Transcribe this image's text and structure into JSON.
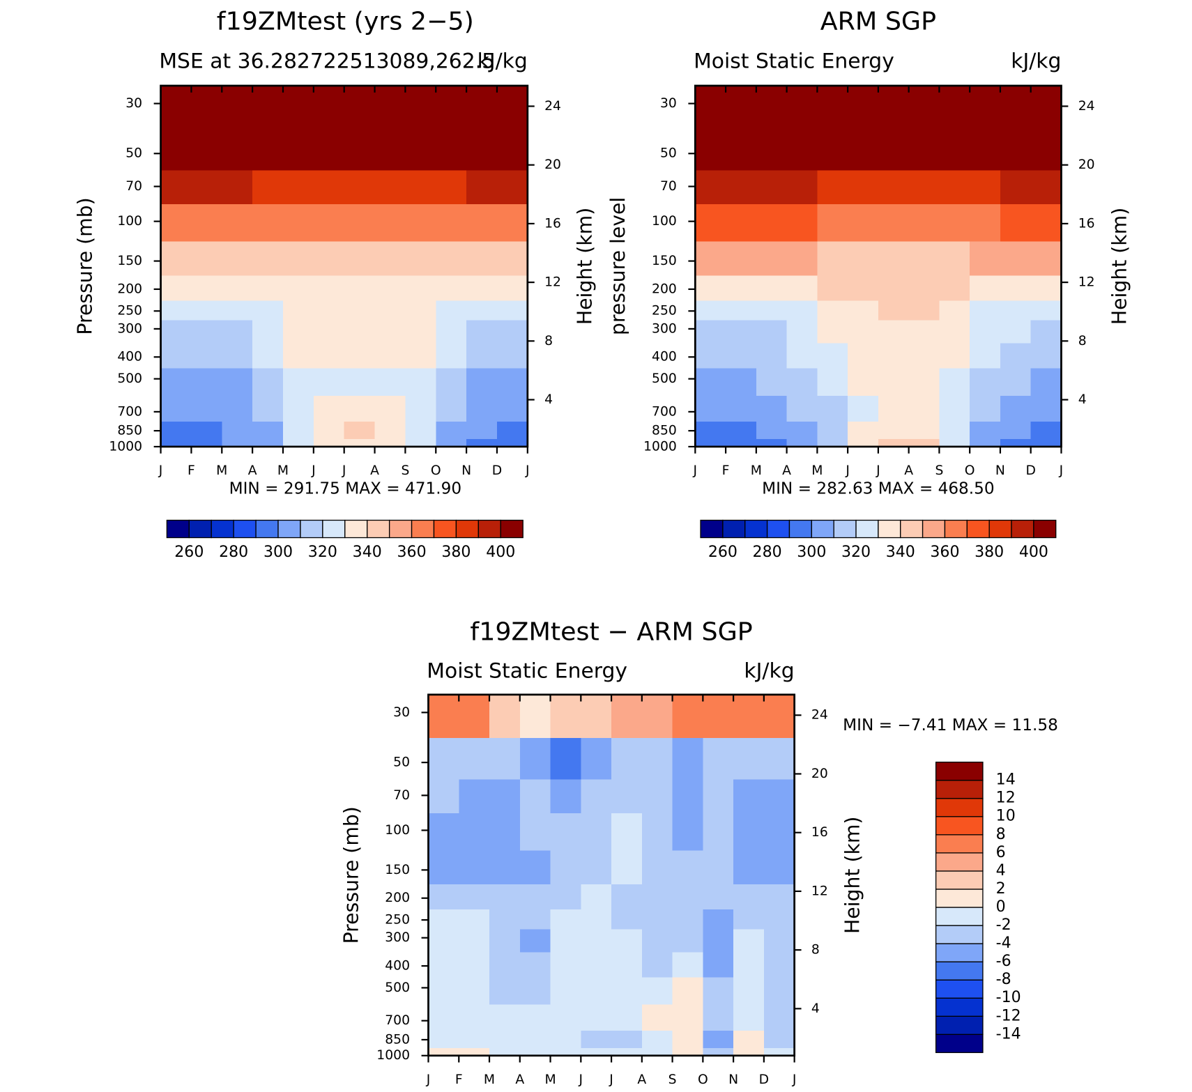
{
  "chart_data": [
    {
      "type": "contour",
      "title": "f19ZMtest (yrs 2−5)",
      "subtitle_left": "MSE at 36.282722513089,262.5",
      "subtitle_right": "kJ/kg",
      "y_label": "Pressure (mb)",
      "y2_label": "Height (km)",
      "stats": "MIN = 291.75  MAX = 471.90",
      "categories": [
        "J",
        "F",
        "M",
        "A",
        "M",
        "J",
        "J",
        "A",
        "S",
        "O",
        "N",
        "D",
        "J"
      ],
      "y": [
        1000,
        850,
        700,
        500,
        400,
        300,
        250,
        200,
        150,
        100,
        70,
        50,
        30
      ],
      "z": [
        [
          294,
          296,
          300,
          306,
          322,
          334,
          338,
          336,
          326,
          304,
          298,
          294
        ],
        [
          296,
          298,
          302,
          308,
          325,
          336,
          340,
          338,
          328,
          305,
          300,
          296
        ],
        [
          304,
          304,
          306,
          312,
          325,
          333,
          336,
          334,
          327,
          312,
          306,
          304
        ],
        [
          306,
          307,
          309,
          316,
          324,
          329,
          328,
          328,
          326,
          316,
          309,
          306
        ],
        [
          312,
          312,
          314,
          320,
          332,
          335,
          336,
          335,
          330,
          320,
          314,
          312
        ],
        [
          316,
          316,
          317,
          322,
          333,
          336,
          337,
          336,
          333,
          322,
          317,
          316
        ],
        [
          324,
          324,
          324,
          326,
          333,
          336,
          336,
          336,
          334,
          326,
          324,
          324
        ],
        [
          333,
          333,
          333,
          334,
          336,
          338,
          338,
          338,
          337,
          335,
          334,
          333
        ],
        [
          345,
          345,
          346,
          347,
          348,
          348,
          348,
          348,
          347,
          346,
          345,
          345
        ],
        [
          368,
          368,
          367,
          366,
          365,
          364,
          363,
          363,
          364,
          365,
          367,
          368
        ],
        [
          392,
          392,
          390,
          388,
          386,
          385,
          384,
          384,
          385,
          387,
          390,
          392
        ],
        [
          410,
          410,
          410,
          410,
          410,
          410,
          410,
          410,
          410,
          410,
          410,
          410
        ],
        [
          450,
          450,
          450,
          450,
          450,
          450,
          450,
          450,
          450,
          450,
          450,
          450
        ]
      ],
      "log_y": true,
      "ylim": [
        1000,
        25
      ],
      "yticks": [
        30,
        50,
        70,
        100,
        150,
        200,
        250,
        300,
        400,
        500,
        700,
        850,
        1000
      ],
      "y2lim": [
        0.8,
        25.4
      ],
      "y2ticks": [
        4,
        8,
        12,
        16,
        20,
        24
      ],
      "colorbar": {
        "orientation": "horizontal",
        "levels": [
          260,
          270,
          280,
          290,
          300,
          310,
          320,
          330,
          340,
          350,
          360,
          370,
          380,
          390,
          400
        ],
        "ticks": [
          260,
          280,
          300,
          320,
          340,
          360,
          380,
          400
        ],
        "colors": [
          "#00008a",
          "#0020b0",
          "#0532d0",
          "#1e50f0",
          "#4478f0",
          "#7fa6f8",
          "#b3ccf8",
          "#d7e8fa",
          "#fde8d8",
          "#fcccb4",
          "#fba88a",
          "#fa7e50",
          "#f85520",
          "#e03808",
          "#b82008",
          "#8a0000"
        ]
      }
    },
    {
      "type": "contour",
      "title": "ARM SGP",
      "subtitle_left": "Moist Static Energy",
      "subtitle_right": "kJ/kg",
      "y_label": "pressure level",
      "y2_label": "Height (km)",
      "stats": "MIN = 282.63  MAX = 468.50",
      "categories": [
        "J",
        "F",
        "M",
        "A",
        "M",
        "J",
        "J",
        "A",
        "S",
        "O",
        "N",
        "D",
        "J"
      ],
      "y": [
        1000,
        850,
        700,
        500,
        400,
        300,
        250,
        200,
        150,
        100,
        70,
        50,
        30
      ],
      "z": [
        [
          294,
          296,
          298,
          304,
          314,
          334,
          342,
          340,
          328,
          304,
          298,
          294
        ],
        [
          296,
          297,
          300,
          306,
          316,
          332,
          338,
          338,
          328,
          306,
          300,
          296
        ],
        [
          302,
          302,
          304,
          310,
          318,
          328,
          334,
          334,
          326,
          310,
          304,
          302
        ],
        [
          308,
          308,
          310,
          314,
          322,
          330,
          332,
          332,
          326,
          314,
          310,
          308
        ],
        [
          314,
          314,
          316,
          320,
          328,
          334,
          336,
          336,
          330,
          320,
          316,
          314
        ],
        [
          318,
          318,
          319,
          324,
          333,
          337,
          339,
          338,
          334,
          324,
          320,
          318
        ],
        [
          325,
          325,
          326,
          328,
          335,
          338,
          340,
          340,
          336,
          328,
          326,
          325
        ],
        [
          335,
          335,
          336,
          337,
          340,
          342,
          342,
          342,
          340,
          338,
          336,
          335
        ],
        [
          352,
          352,
          351,
          350,
          349,
          348,
          347,
          347,
          348,
          350,
          351,
          352
        ],
        [
          372,
          372,
          371,
          370,
          368,
          366,
          365,
          365,
          366,
          368,
          371,
          372
        ],
        [
          394,
          393,
          392,
          390,
          388,
          387,
          386,
          386,
          387,
          389,
          392,
          394
        ],
        [
          410,
          410,
          410,
          410,
          410,
          410,
          410,
          410,
          410,
          410,
          410,
          410
        ],
        [
          450,
          450,
          450,
          450,
          450,
          450,
          450,
          450,
          450,
          450,
          450,
          450
        ]
      ],
      "log_y": true,
      "ylim": [
        1000,
        25
      ],
      "yticks": [
        30,
        50,
        70,
        100,
        150,
        200,
        250,
        300,
        400,
        500,
        700,
        850,
        1000
      ],
      "y2lim": [
        0.8,
        25.4
      ],
      "y2ticks": [
        4,
        8,
        12,
        16,
        20,
        24
      ],
      "colorbar": {
        "orientation": "horizontal",
        "levels": [
          260,
          270,
          280,
          290,
          300,
          310,
          320,
          330,
          340,
          350,
          360,
          370,
          380,
          390,
          400
        ],
        "ticks": [
          260,
          280,
          300,
          320,
          340,
          360,
          380,
          400
        ],
        "colors": [
          "#00008a",
          "#0020b0",
          "#0532d0",
          "#1e50f0",
          "#4478f0",
          "#7fa6f8",
          "#b3ccf8",
          "#d7e8fa",
          "#fde8d8",
          "#fcccb4",
          "#fba88a",
          "#fa7e50",
          "#f85520",
          "#e03808",
          "#b82008",
          "#8a0000"
        ]
      }
    },
    {
      "type": "contour",
      "title": "f19ZMtest − ARM SGP",
      "subtitle_left": "Moist Static Energy",
      "subtitle_right": "kJ/kg",
      "y_label": "Pressure (mb)",
      "y2_label": "Height (km)",
      "stats": "MIN =   −7.41  MAX =   11.58",
      "categories": [
        "J",
        "F",
        "M",
        "A",
        "M",
        "J",
        "J",
        "A",
        "S",
        "O",
        "N",
        "D",
        "J"
      ],
      "y": [
        1000,
        850,
        700,
        500,
        400,
        300,
        250,
        200,
        150,
        100,
        70,
        50,
        30
      ],
      "z": [
        [
          0,
          0,
          -1,
          -1,
          -1,
          -1,
          -2,
          -1,
          0,
          -3,
          0,
          -1
        ],
        [
          -1,
          -1,
          -1,
          -2,
          -1,
          -3,
          -3,
          -2,
          1,
          -6,
          0,
          -3
        ],
        [
          -1,
          -1,
          -2,
          -2,
          -1,
          -1,
          -1,
          0,
          1,
          -4,
          -1,
          -3
        ],
        [
          -1,
          -1,
          -3,
          -3,
          -2,
          -1,
          -1,
          -1,
          0,
          -4,
          -2,
          -3
        ],
        [
          -1,
          -2,
          -3,
          -4,
          -1,
          -1,
          -2,
          -3,
          -2,
          -5,
          -2,
          -3
        ],
        [
          -1,
          -2,
          -3,
          -5,
          -1,
          -1,
          -2,
          -3,
          -3,
          -5,
          -2,
          -3
        ],
        [
          -1,
          -1,
          -3,
          -4,
          -2,
          -1,
          -3,
          -3,
          -3,
          -5,
          -3,
          -3
        ],
        [
          -3,
          -3,
          -3,
          -4,
          -3,
          -2,
          -3,
          -3,
          -4,
          -3,
          -4,
          -4
        ],
        [
          -5,
          -5,
          -5,
          -5,
          -4,
          -3,
          -2,
          -3,
          -4,
          -3,
          -5,
          -5
        ],
        [
          -5,
          -5,
          -5,
          -3,
          -4,
          -3,
          -2,
          -3,
          -5,
          -3,
          -5,
          -5
        ],
        [
          -4,
          -5,
          -5,
          -3,
          -5,
          -4,
          -3,
          -4,
          -5,
          -3,
          -5,
          -5
        ],
        [
          -3,
          -3,
          -4,
          -6,
          -7,
          -5,
          -4,
          -4,
          -5,
          -3,
          -4,
          -4
        ],
        [
          7,
          6,
          3,
          1,
          2,
          3,
          4,
          5,
          6,
          6,
          7,
          7
        ]
      ],
      "log_y": true,
      "ylim": [
        1000,
        25
      ],
      "yticks": [
        30,
        50,
        70,
        100,
        150,
        200,
        250,
        300,
        400,
        500,
        700,
        850,
        1000
      ],
      "y2lim": [
        0.8,
        25.4
      ],
      "y2ticks": [
        4,
        8,
        12,
        16,
        20,
        24
      ],
      "colorbar": {
        "orientation": "vertical",
        "levels": [
          -14,
          -12,
          -10,
          -8,
          -6,
          -4,
          -2,
          0,
          2,
          4,
          6,
          8,
          10,
          12,
          14
        ],
        "ticks": [
          -14,
          -12,
          -10,
          -8,
          -6,
          -4,
          -2,
          0,
          2,
          4,
          6,
          8,
          10,
          12,
          14
        ],
        "colors": [
          "#00008a",
          "#0020b0",
          "#0532d0",
          "#1e50f0",
          "#4478f0",
          "#7fa6f8",
          "#b3ccf8",
          "#d7e8fa",
          "#fde8d8",
          "#fcccb4",
          "#fba88a",
          "#fa7e50",
          "#f85520",
          "#e03808",
          "#b82008",
          "#8a0000"
        ]
      }
    }
  ]
}
